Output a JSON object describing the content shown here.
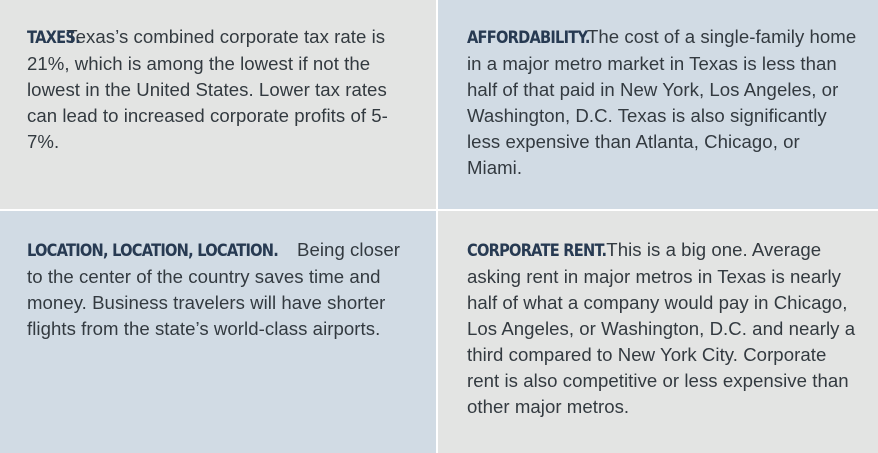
{
  "panels": [
    {
      "heading": "TAXES.",
      "text": "Texas’s combined corporate tax rate is 21%, which is among the lowest if not the lowest in the United States. Lower tax rates can lead to increased corporate profits of 5-7%."
    },
    {
      "heading": "AFFORDABILITY.",
      "text": "The cost of a single-family home in a major metro market in Texas is less than half of that paid in New York, Los Angeles, or Washington, D.C. Texas is also significantly less expensive than Atlanta, Chicago, or Miami."
    },
    {
      "heading": "LOCATION, LOCATION, LOCATION.",
      "text": "Being closer to the center of the country saves time and money. Business travelers will have shorter flights from the state’s world-class airports."
    },
    {
      "heading": "CORPORATE RENT.",
      "text": "This is a big one. Average asking rent in major metros in Texas is nearly half of what a company would pay in Chicago, Los Angeles, or Washington, D.C. and nearly a third compared to New York City. Corporate rent is also competitive or less expensive than other major metros."
    }
  ],
  "colors": {
    "panel_gray": "#e3e4e3",
    "panel_blue": "#d1dbe4",
    "heading": "#273a52",
    "body_text": "#333a40",
    "divider": "#ffffff"
  }
}
